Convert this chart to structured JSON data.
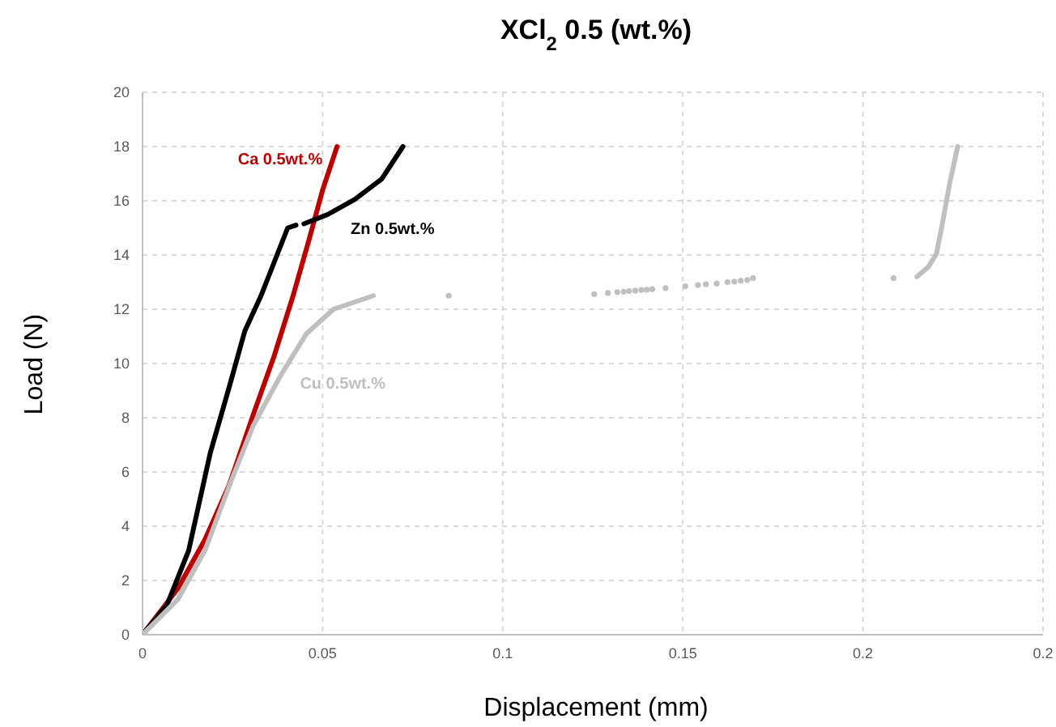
{
  "chart_data": {
    "type": "line",
    "title": "XCl$_{2}$ 0.5 (wt.%)",
    "xlabel": "Displacement (mm)",
    "ylabel": "Load (N)",
    "xlim": [
      0,
      0.25
    ],
    "xticks": [
      0,
      0.05,
      0.1,
      0.15,
      0.2,
      {
        "value": 0.25,
        "label": "0.2"
      }
    ],
    "ylim": [
      0,
      20
    ],
    "yticks": [
      0,
      2,
      4,
      6,
      8,
      10,
      12,
      14,
      16,
      18,
      20
    ],
    "grid": true,
    "marker": "none",
    "line_style": "solid",
    "series": [
      {
        "name": "Ca 0.5wt.%",
        "color": "#c00000",
        "x": [
          0,
          0.0098,
          0.0173,
          0.024,
          0.0307,
          0.0366,
          0.0418,
          0.0463,
          0.05,
          0.054
        ],
        "values": [
          0,
          1.7,
          3.5,
          5.5,
          8.1,
          10.3,
          12.5,
          14.6,
          16.4,
          18.0
        ]
      },
      {
        "name": "Zn 0.5wt.%",
        "color": "#000000",
        "x": [
          0,
          0.0068,
          0.0128,
          0.0188,
          0.024,
          0.0284,
          0.0329,
          0.0403,
          0.0426,
          0.0437,
          0.0448,
          0.0515,
          0.0589,
          0.0664,
          0.0723
        ],
        "values": [
          0,
          1.1,
          3.1,
          6.7,
          9.1,
          11.2,
          12.5,
          15.0,
          15.1,
          null,
          15.15,
          15.5,
          16.05,
          16.8,
          18.0
        ]
      },
      {
        "name": "Cu 0.5wt.%",
        "color": "#bfbfbf",
        "x": [
          0,
          0.0098,
          0.0173,
          0.0247,
          0.0307,
          0.0381,
          0.0455,
          0.053,
          0.0641,
          0.14,
          0.215,
          0.2181,
          0.2204,
          0.2219,
          0.2241,
          0.2263
        ],
        "values": [
          0,
          1.3,
          3.1,
          5.7,
          7.7,
          9.5,
          11.1,
          12.0,
          12.5,
          null,
          13.2,
          13.55,
          14.05,
          15.05,
          16.65,
          18.0
        ]
      },
      {
        "type": "scatter",
        "marker": "circle",
        "color": "#bfbfbf",
        "x": [
          0.085,
          0.1254,
          0.1292,
          0.1318,
          0.1336,
          0.1351,
          0.1368,
          0.1385,
          0.14,
          0.1415,
          0.1452,
          0.1507,
          0.1542,
          0.1564,
          0.1594,
          0.1624,
          0.1643,
          0.1661,
          0.1679,
          0.1695,
          0.2085
        ],
        "values": [
          12.5,
          12.56,
          12.6,
          12.63,
          12.65,
          12.67,
          12.69,
          12.71,
          12.72,
          12.74,
          12.78,
          12.85,
          12.89,
          12.92,
          12.95,
          13.0,
          13.02,
          13.05,
          13.08,
          13.15,
          13.15
        ]
      }
    ]
  }
}
